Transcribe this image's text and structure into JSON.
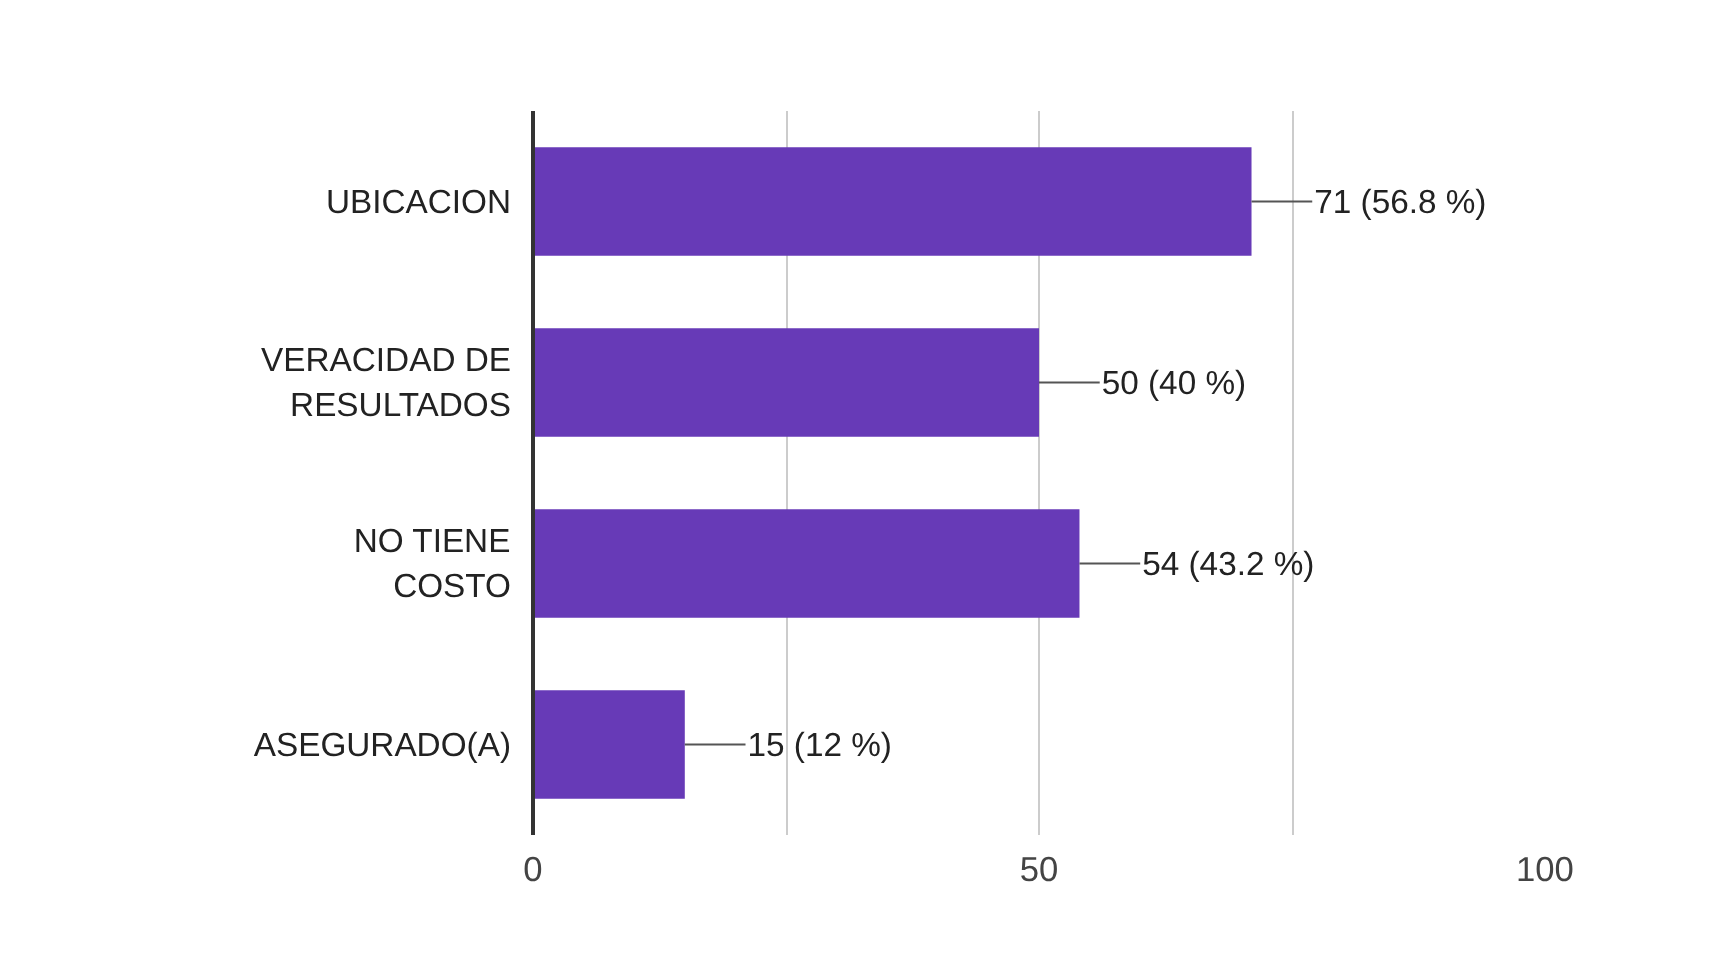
{
  "chart_data": {
    "type": "bar",
    "orientation": "horizontal",
    "categories": [
      "UBICACION",
      "VERACIDAD DE\nRESULTADOS",
      "NO TIENE\nCOSTO",
      "ASEGURADO(A)"
    ],
    "values": [
      71,
      50,
      54,
      15
    ],
    "value_labels": [
      "71 (56.8 %)",
      "50 (40 %)",
      "54 (43.2 %)",
      "15 (12 %)"
    ],
    "color": "#673ab7",
    "xlim": [
      0,
      100
    ],
    "xticks": [
      0,
      {
        "value": 25,
        "label": null
      },
      50,
      {
        "value": 75,
        "label": null
      },
      100
    ],
    "grid": "x"
  }
}
